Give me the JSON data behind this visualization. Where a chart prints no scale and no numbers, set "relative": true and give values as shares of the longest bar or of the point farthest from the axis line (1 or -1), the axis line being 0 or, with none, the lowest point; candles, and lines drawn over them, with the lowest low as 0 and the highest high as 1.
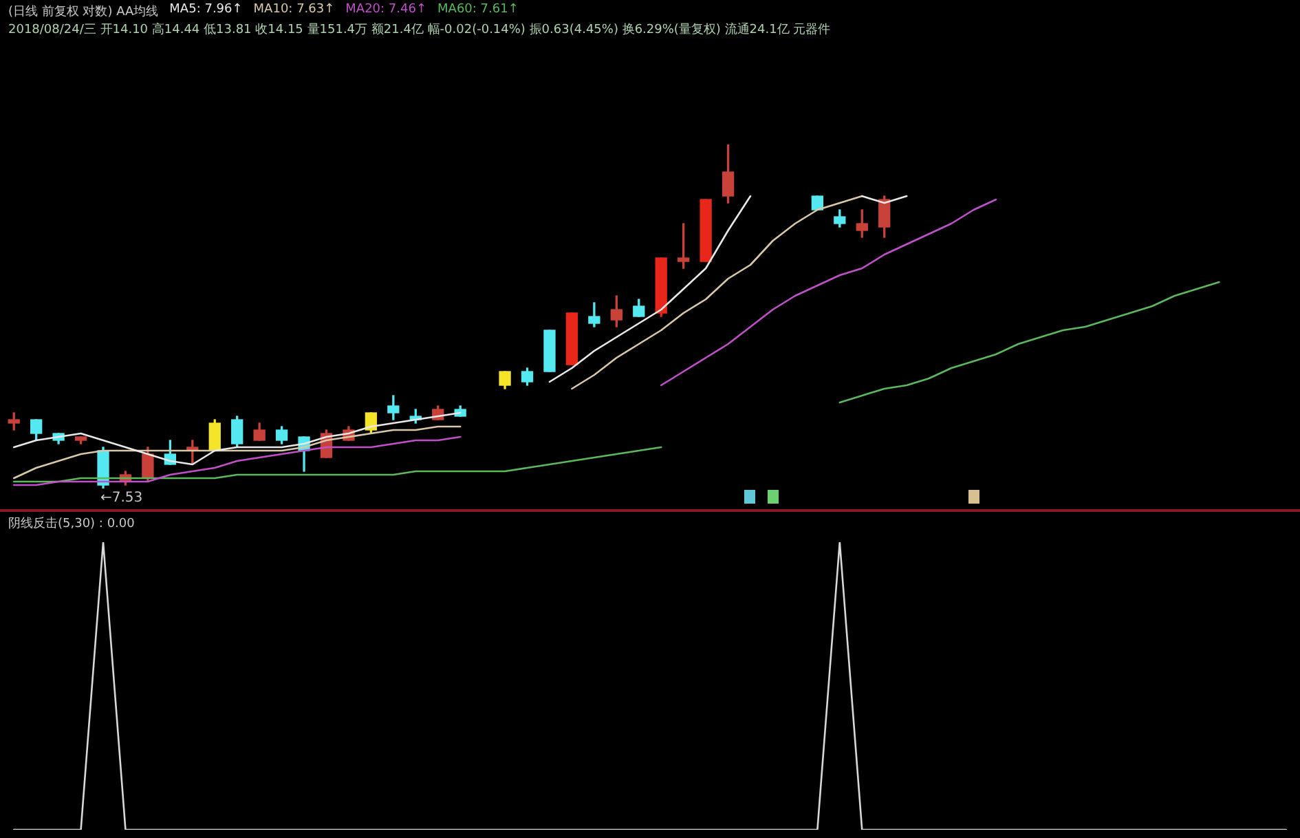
{
  "chart_data": [
    {
      "type": "candlestick",
      "title": "(日线 前复权 对数) AA均线",
      "subtitle": "2018/08/24/三 开14.10 高14.44 低13.81 收14.15 量151.4万 额21.4亿 幅-0.02(-0.14%) 振0.63(4.45%) 换6.29%(量复权) 流通24.1亿 元器件",
      "relative": true,
      "legend": "top left",
      "categories": [
        null,
        null,
        null,
        null,
        null,
        null,
        null,
        null,
        null,
        null,
        null,
        null,
        null,
        null,
        null,
        null,
        null,
        null,
        null,
        null,
        null,
        null,
        null,
        null,
        null,
        null,
        null,
        null,
        null,
        null,
        null,
        null,
        null,
        null,
        null,
        null,
        null,
        null,
        null,
        null,
        null,
        null,
        null,
        null,
        null,
        null,
        null,
        null,
        null,
        null,
        null,
        null,
        null,
        null,
        null,
        null,
        null,
        null
      ],
      "ohlc": [
        [
          0.19,
          0.22,
          0.17,
          0.2
        ],
        [
          0.2,
          0.2,
          0.14,
          0.16
        ],
        [
          0.16,
          0.16,
          0.13,
          0.14
        ],
        [
          0.14,
          0.15,
          0.13,
          0.15
        ],
        [
          0.11,
          0.12,
          0,
          0.01
        ],
        [
          0.02,
          0.05,
          0.01,
          0.04
        ],
        [
          0.03,
          0.12,
          0.02,
          0.1
        ],
        [
          0.1,
          0.14,
          0.07,
          0.07
        ],
        [
          0.11,
          0.14,
          0.07,
          0.12
        ],
        [
          0.11,
          0.2,
          0.11,
          0.19
        ],
        [
          0.2,
          0.21,
          0.12,
          0.13
        ],
        [
          0.14,
          0.19,
          0.14,
          0.17
        ],
        [
          0.17,
          0.18,
          0.13,
          0.14
        ],
        [
          0.15,
          0.15,
          0.05,
          0.11
        ],
        [
          0.09,
          0.17,
          0.09,
          0.16
        ],
        [
          0.14,
          0.18,
          0.14,
          0.17
        ],
        [
          0.17,
          0.22,
          0.16,
          0.22
        ],
        [
          0.24,
          0.27,
          0.2,
          0.22
        ],
        [
          0.21,
          0.23,
          0.19,
          0.2
        ],
        [
          0.2,
          0.24,
          0.2,
          0.23
        ],
        [
          0.23,
          0.24,
          0.21,
          0.21
        ],
        null,
        [
          0.3,
          0.34,
          0.29,
          0.34
        ],
        [
          0.34,
          0.35,
          0.3,
          0.31
        ],
        [
          0.46,
          0.46,
          0.34,
          0.34
        ],
        [
          0.36,
          0.51,
          0.36,
          0.51
        ],
        [
          0.5,
          0.54,
          0.47,
          0.48
        ],
        [
          0.49,
          0.56,
          0.47,
          0.52
        ],
        [
          0.53,
          0.55,
          0.5,
          0.5
        ],
        [
          0.51,
          0.67,
          0.5,
          0.67
        ],
        [
          0.66,
          0.77,
          0.64,
          0.67
        ],
        [
          0.66,
          0.84,
          0.66,
          0.84
        ],
        [
          0.85,
          1,
          0.83,
          0.92
        ],
        null,
        null,
        null,
        [
          0.85,
          0.85,
          0.81,
          0.81
        ],
        [
          0.79,
          0.81,
          0.76,
          0.77
        ],
        [
          0.75,
          0.81,
          0.73,
          0.77
        ],
        [
          0.76,
          0.85,
          0.73,
          0.84
        ],
        null,
        null,
        null,
        null,
        null,
        null,
        null,
        null,
        null,
        null,
        null,
        null,
        null,
        null,
        null,
        null,
        null,
        null
      ],
      "colors": [
        "#c8423a",
        "#54e8f0",
        "#54e8f0",
        "#c8423a",
        "#54e8f0",
        "#c8423a",
        "#c8423a",
        "#54e8f0",
        "#c8423a",
        "#f5e52a",
        "#54e8f0",
        "#c8423a",
        "#54e8f0",
        "#54e8f0",
        "#c8423a",
        "#c8423a",
        "#f5e52a",
        "#54e8f0",
        "#54e8f0",
        "#c8423a",
        "#54e8f0",
        null,
        "#f5e52a",
        "#54e8f0",
        "#54e8f0",
        "#e8261a",
        "#54e8f0",
        "#c8423a",
        "#54e8f0",
        "#e8261a",
        "#c8423a",
        "#e8261a",
        "#c8423a",
        null,
        null,
        null,
        "#54e8f0",
        "#54e8f0",
        "#c8423a",
        "#c8423a",
        null,
        null,
        null,
        null,
        null,
        null,
        null,
        null,
        null,
        null,
        null,
        null,
        null,
        null,
        null,
        null,
        null,
        null
      ],
      "series": [
        {
          "type": "line",
          "name": "MA5: 7.96↑",
          "color": "#e8e8e8",
          "values": [
            0.12,
            0.14,
            0.15,
            0.16,
            0.14,
            0.12,
            0.1,
            0.08,
            0.07,
            0.11,
            0.12,
            0.12,
            0.12,
            0.13,
            0.15,
            0.16,
            0.18,
            0.19,
            0.2,
            0.21,
            0.22,
            null,
            null,
            null,
            0.31,
            0.35,
            0.4,
            0.44,
            0.48,
            0.52,
            0.58,
            0.64,
            0.75,
            0.85,
            null,
            null,
            null,
            null,
            0.85,
            0.83,
            0.85,
            null,
            null,
            null,
            null,
            null,
            null,
            null,
            null,
            null,
            null,
            null,
            null,
            null,
            null,
            null,
            null,
            null
          ]
        },
        {
          "type": "line",
          "name": "MA10: 7.63↑",
          "color": "#d8c8a8",
          "values": [
            0.03,
            0.06,
            0.08,
            0.1,
            0.11,
            0.11,
            0.11,
            0.11,
            0.11,
            0.11,
            0.11,
            0.11,
            0.11,
            0.12,
            0.14,
            0.15,
            0.16,
            0.17,
            0.17,
            0.18,
            0.18,
            null,
            null,
            null,
            null,
            0.29,
            0.33,
            0.38,
            0.42,
            0.46,
            0.51,
            0.55,
            0.61,
            0.65,
            0.72,
            0.77,
            0.81,
            0.83,
            0.85,
            null,
            null,
            null,
            null,
            null,
            null,
            null,
            null,
            null,
            null,
            null,
            null,
            null,
            null,
            null,
            null,
            null,
            null,
            null
          ]
        },
        {
          "type": "line",
          "name": "MA20: 7.46↑",
          "color": "#c050c8",
          "values": [
            0.01,
            0.01,
            0.02,
            0.02,
            0.02,
            0.02,
            0.02,
            0.04,
            0.05,
            0.06,
            0.08,
            0.09,
            0.1,
            0.11,
            0.12,
            0.12,
            0.12,
            0.13,
            0.14,
            0.14,
            0.15,
            null,
            null,
            null,
            null,
            null,
            null,
            null,
            null,
            0.3,
            0.34,
            0.38,
            0.42,
            0.47,
            0.52,
            0.56,
            0.59,
            0.62,
            0.64,
            0.68,
            0.71,
            0.74,
            0.77,
            0.81,
            0.84,
            null,
            null,
            null,
            null,
            null,
            null,
            null,
            null,
            null,
            null,
            null,
            null,
            null
          ]
        },
        {
          "type": "line",
          "name": "MA60: 7.61↑",
          "color": "#5cb85c",
          "values": [
            0.02,
            0.02,
            0.02,
            0.03,
            0.03,
            0.03,
            0.03,
            0.03,
            0.03,
            0.03,
            0.04,
            0.04,
            0.04,
            0.04,
            0.04,
            0.04,
            0.04,
            0.04,
            0.05,
            0.05,
            0.05,
            0.05,
            0.05,
            0.06,
            0.07,
            0.08,
            0.09,
            0.1,
            0.11,
            0.12,
            null,
            null,
            null,
            null,
            null,
            null,
            null,
            0.25,
            0.27,
            0.29,
            0.3,
            0.32,
            0.35,
            0.37,
            0.39,
            0.42,
            0.44,
            0.46,
            0.47,
            0.49,
            0.51,
            0.53,
            0.56,
            0.58,
            0.6,
            null,
            null,
            null
          ]
        }
      ],
      "annotations": [
        "←7.53"
      ]
    },
    {
      "type": "line",
      "title": "阴线反击(5,30) : 0.00",
      "relative": true,
      "categories": [
        null,
        null,
        null,
        null,
        null,
        null,
        null,
        null,
        null,
        null,
        null,
        null,
        null,
        null,
        null,
        null,
        null,
        null,
        null,
        null,
        null,
        null,
        null,
        null,
        null,
        null,
        null,
        null,
        null,
        null,
        null,
        null,
        null,
        null,
        null,
        null,
        null,
        null,
        null,
        null,
        null,
        null,
        null,
        null,
        null,
        null,
        null,
        null,
        null,
        null,
        null,
        null,
        null,
        null,
        null,
        null,
        null,
        null
      ],
      "series": [
        {
          "color": "#d8d8d8",
          "values": [
            0,
            0,
            0,
            0,
            1,
            0,
            0,
            0,
            0,
            0,
            0,
            0,
            0,
            0,
            0,
            0,
            0,
            0,
            0,
            0,
            0,
            0,
            0,
            0,
            0,
            0,
            0,
            0,
            0,
            0,
            0,
            0,
            0,
            0,
            0,
            0,
            0,
            1,
            0,
            0,
            0,
            0,
            0,
            0,
            0,
            0,
            0,
            0,
            0,
            0,
            0,
            0,
            0,
            0,
            0,
            0,
            0,
            0
          ]
        }
      ]
    }
  ]
}
